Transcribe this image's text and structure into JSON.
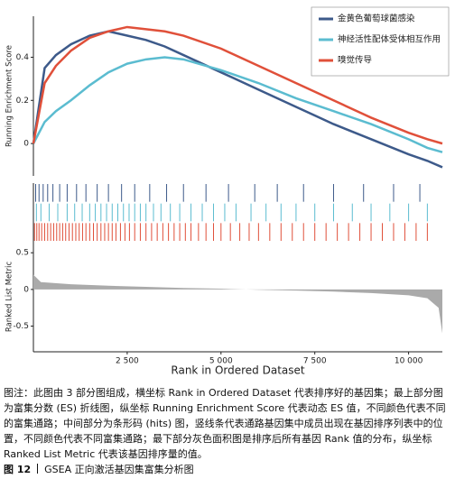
{
  "chart_data": [
    {
      "type": "line",
      "ylabel": "Running Enrichment Score",
      "xlim": [
        0,
        10900
      ],
      "ylim": [
        -0.15,
        0.59
      ],
      "yticks": [
        0,
        0.2,
        0.4
      ],
      "x": [
        0,
        300,
        600,
        1000,
        1500,
        2000,
        2500,
        3000,
        3500,
        4000,
        5000,
        6000,
        7000,
        8000,
        9000,
        10000,
        10500,
        10900
      ],
      "series": [
        {
          "name": "金黄色葡萄球菌感染",
          "color": "#3d5a8a",
          "values": [
            0,
            0.35,
            0.41,
            0.46,
            0.5,
            0.52,
            0.5,
            0.48,
            0.45,
            0.41,
            0.33,
            0.25,
            0.17,
            0.09,
            0.02,
            -0.05,
            -0.08,
            -0.11
          ]
        },
        {
          "name": "神经活性配体受体相互作用",
          "color": "#5bbcd0",
          "values": [
            0,
            0.1,
            0.15,
            0.2,
            0.27,
            0.33,
            0.37,
            0.39,
            0.4,
            0.39,
            0.34,
            0.28,
            0.21,
            0.15,
            0.09,
            0.02,
            -0.02,
            -0.04
          ]
        },
        {
          "name": "嗅觉传导",
          "color": "#e0503a",
          "values": [
            0,
            0.28,
            0.36,
            0.43,
            0.49,
            0.52,
            0.54,
            0.53,
            0.52,
            0.5,
            0.44,
            0.36,
            0.28,
            0.2,
            0.12,
            0.05,
            0.02,
            0
          ]
        }
      ]
    },
    {
      "type": "barcode",
      "xlim": [
        0,
        10900
      ],
      "series": [
        {
          "color": "#3d5a8a",
          "positions": [
            60,
            150,
            260,
            380,
            520,
            700,
            900,
            1150,
            1400,
            1700,
            2000,
            2350,
            2700,
            3100,
            3550,
            4000,
            4600,
            5200,
            5900,
            6500,
            7200,
            8000,
            8800,
            9600,
            10300
          ]
        },
        {
          "color": "#5bbcd0",
          "positions": [
            80,
            200,
            420,
            650,
            900,
            1100,
            1300,
            1500,
            1650,
            1800,
            1950,
            2100,
            2250,
            2400,
            2550,
            2700,
            2850,
            3000,
            3200,
            3400,
            3650,
            3900,
            4200,
            4500,
            4800,
            5100,
            5400,
            5800,
            6200,
            6600,
            7000,
            7500,
            8000,
            8500,
            9000,
            9500,
            10000,
            10500
          ]
        },
        {
          "color": "#e0503a",
          "positions": [
            30,
            90,
            150,
            220,
            300,
            380,
            460,
            540,
            620,
            700,
            780,
            860,
            950,
            1040,
            1130,
            1220,
            1310,
            1400,
            1500,
            1600,
            1700,
            1800,
            1900,
            2000,
            2100,
            2200,
            2320,
            2440,
            2560,
            2700,
            2850,
            3000,
            3150,
            3300,
            3450,
            3600,
            3750,
            3900,
            4050,
            4200,
            4400,
            4600,
            4800,
            5000,
            5250,
            5500,
            5750,
            6000,
            6300,
            6600,
            6900,
            7200,
            7500,
            7800,
            8100,
            8400,
            8700,
            9000,
            9300,
            9600,
            9900,
            10200,
            10500
          ]
        }
      ]
    },
    {
      "type": "area",
      "ylabel": "Ranked List Metric",
      "xlabel": "Rank in Ordered Dataset",
      "color": "#aaaaaa",
      "xlim": [
        0,
        10900
      ],
      "ylim": [
        -0.85,
        0.65
      ],
      "yticks": [
        -0.5,
        0,
        0.5
      ],
      "xticks": [
        {
          "value": 2500,
          "label": "2 500"
        },
        {
          "value": 5000,
          "label": "5 000"
        },
        {
          "value": 7500,
          "label": "7 500"
        },
        {
          "value": 10000,
          "label": "10 000"
        }
      ],
      "x": [
        0,
        200,
        1000,
        2000,
        3000,
        4000,
        5000,
        6000,
        7000,
        8000,
        9000,
        10000,
        10500,
        10800,
        10900
      ],
      "values": [
        0.2,
        0.1,
        0.07,
        0.05,
        0.035,
        0.02,
        0.01,
        -0.005,
        -0.015,
        -0.03,
        -0.05,
        -0.08,
        -0.12,
        -0.25,
        -0.6
      ]
    }
  ],
  "caption": "图注：此图由 3 部分图组成，横坐标 Rank in Ordered Dataset 代表排序好的基因集；最上部分图为富集分数 (ES) 折线图，纵坐标 Running Enrichment Score 代表动态 ES 值，不同颜色代表不同的富集通路；中间部分为条形码 (hits) 图，竖线条代表通路基因集中成员出现在基因排序列表中的位置，不同颜色代表不同富集通路；最下部分灰色面积图是排序后所有基因 Rank 值的分布，纵坐标 Ranked List Metric 代表该基因排序量的值。",
  "figure_number": "图 12",
  "figure_title": "GSEA 正向激活基因集富集分析图"
}
